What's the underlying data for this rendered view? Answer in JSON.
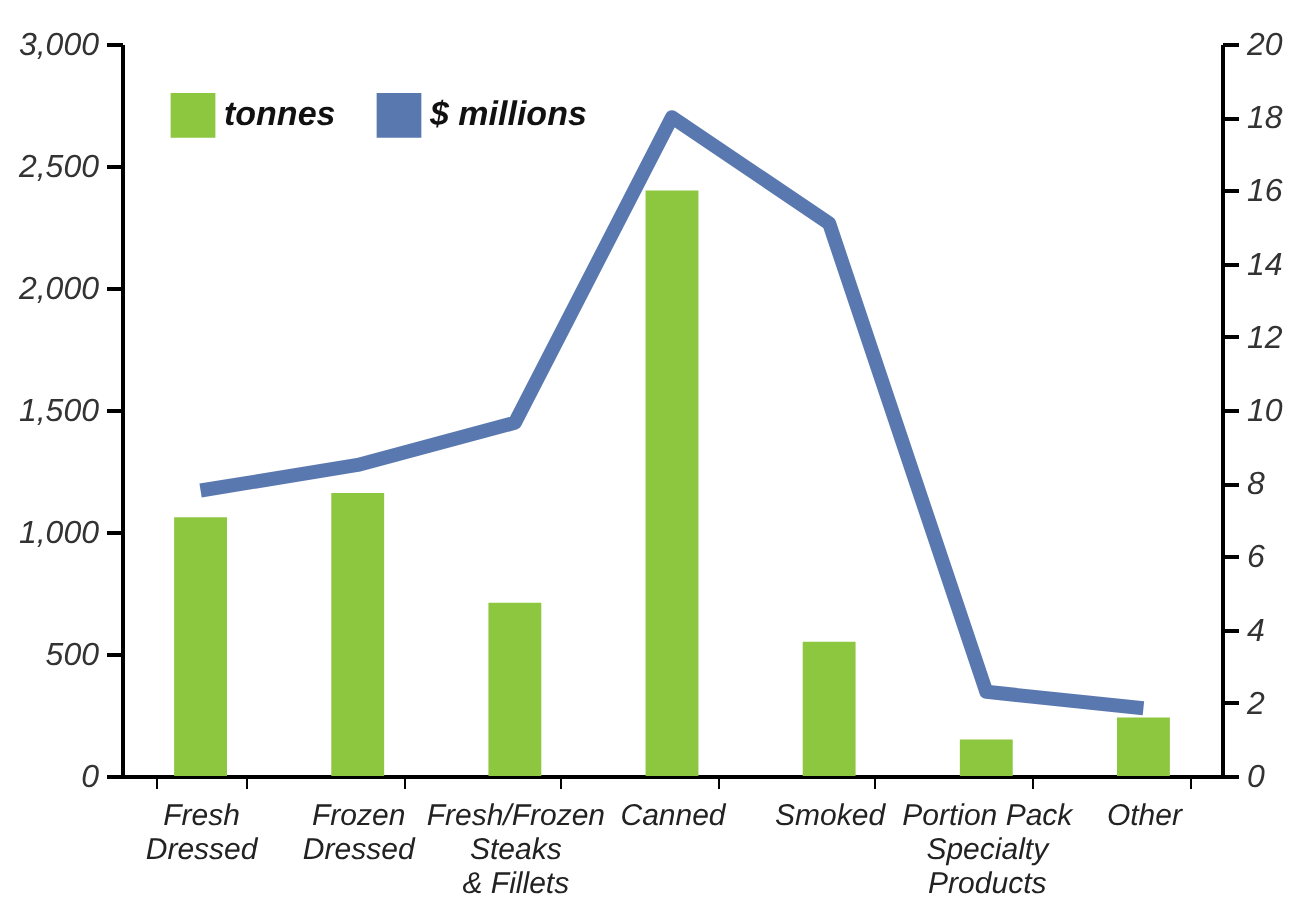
{
  "chart_data": {
    "type": "bar",
    "categories": [
      "Fresh\nDressed",
      "Frozen\nDressed",
      "Fresh/Frozen\nSteaks\n& Fillets",
      "Canned",
      "Smoked",
      "Portion Pack\nSpecialty\nProducts",
      "Other"
    ],
    "series": [
      {
        "name": "tonnes",
        "color": "#8dc63f",
        "values": [
          1060,
          1160,
          710,
          2400,
          550,
          150,
          240
        ]
      },
      {
        "name": "$ millions",
        "type": "line",
        "axis": "y2",
        "color": "#5a78b0",
        "values": [
          7.8,
          8.5,
          9.65,
          18.0,
          15.1,
          2.3,
          1.85
        ]
      }
    ],
    "ylim": [
      0,
      3000
    ],
    "yticks": [
      0,
      500,
      {
        "value": 1000,
        "label": "1,000"
      },
      {
        "value": 1500,
        "label": "1,500"
      },
      {
        "value": 2000,
        "label": "2,000"
      },
      {
        "value": 2500,
        "label": "2,500"
      },
      {
        "value": 3000,
        "label": "3,000"
      }
    ],
    "y2lim": [
      0,
      20
    ],
    "y2ticks": [
      0,
      2,
      4,
      6,
      8,
      10,
      12,
      14,
      16,
      18,
      20
    ],
    "legend": "top left",
    "grid": false
  }
}
